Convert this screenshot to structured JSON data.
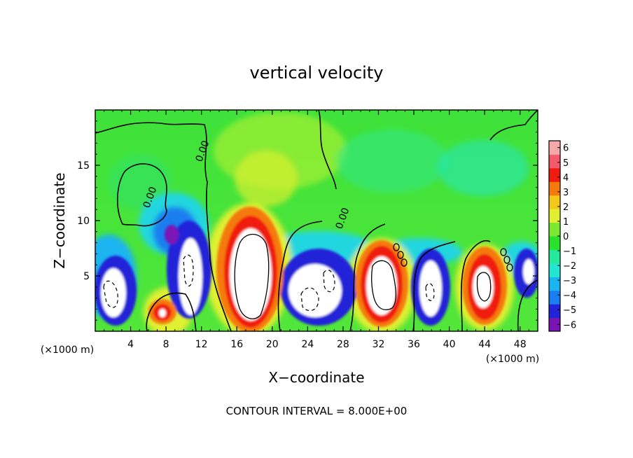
{
  "chart_data": {
    "type": "heatmap",
    "title": "vertical velocity",
    "xlabel": "X−coordinate",
    "ylabel": "Z−coordinate",
    "x_unit": "(×1000 m)",
    "x_ticks": [
      4,
      8,
      12,
      16,
      20,
      24,
      28,
      32,
      36,
      40,
      44,
      48
    ],
    "y_ticks": [
      5,
      10,
      15
    ],
    "xlim": [
      0,
      50
    ],
    "ylim": [
      0,
      20
    ],
    "colorbar": {
      "ticks": [
        "6",
        "5",
        "4",
        "3",
        "2",
        "1",
        "0",
        "−1",
        "−2",
        "−3",
        "−4",
        "−5",
        "−6"
      ],
      "range": [
        -6,
        6
      ],
      "colors": [
        "#7b14b5",
        "#2222d8",
        "#1a7df0",
        "#1ab4f0",
        "#22e6d2",
        "#24e89a",
        "#28e22e",
        "#7ae830",
        "#e0f030",
        "#f5c818",
        "#f57a0c",
        "#f01a10",
        "#f55a6a",
        "#f5a8a8"
      ]
    },
    "contour_interval_text": "CONTOUR INTERVAL = 8.000E+00",
    "contour_labels": [
      "0.00",
      "0.00",
      "0.00",
      "0.00",
      "0.00",
      "0.00"
    ],
    "cells": [
      {
        "x": 2,
        "z": 3.5,
        "w": -6
      },
      {
        "x": 9.5,
        "z": 6,
        "w": -6
      },
      {
        "x": 8,
        "z": 2,
        "w": 4
      },
      {
        "x": 18,
        "z": 5,
        "w": 6
      },
      {
        "x": 25,
        "z": 4.5,
        "w": -6
      },
      {
        "x": 32,
        "z": 5,
        "w": 6
      },
      {
        "x": 38.5,
        "z": 4,
        "w": -6
      },
      {
        "x": 44.5,
        "z": 4,
        "w": 6
      },
      {
        "x": 49,
        "z": 5.5,
        "w": -6
      }
    ]
  }
}
